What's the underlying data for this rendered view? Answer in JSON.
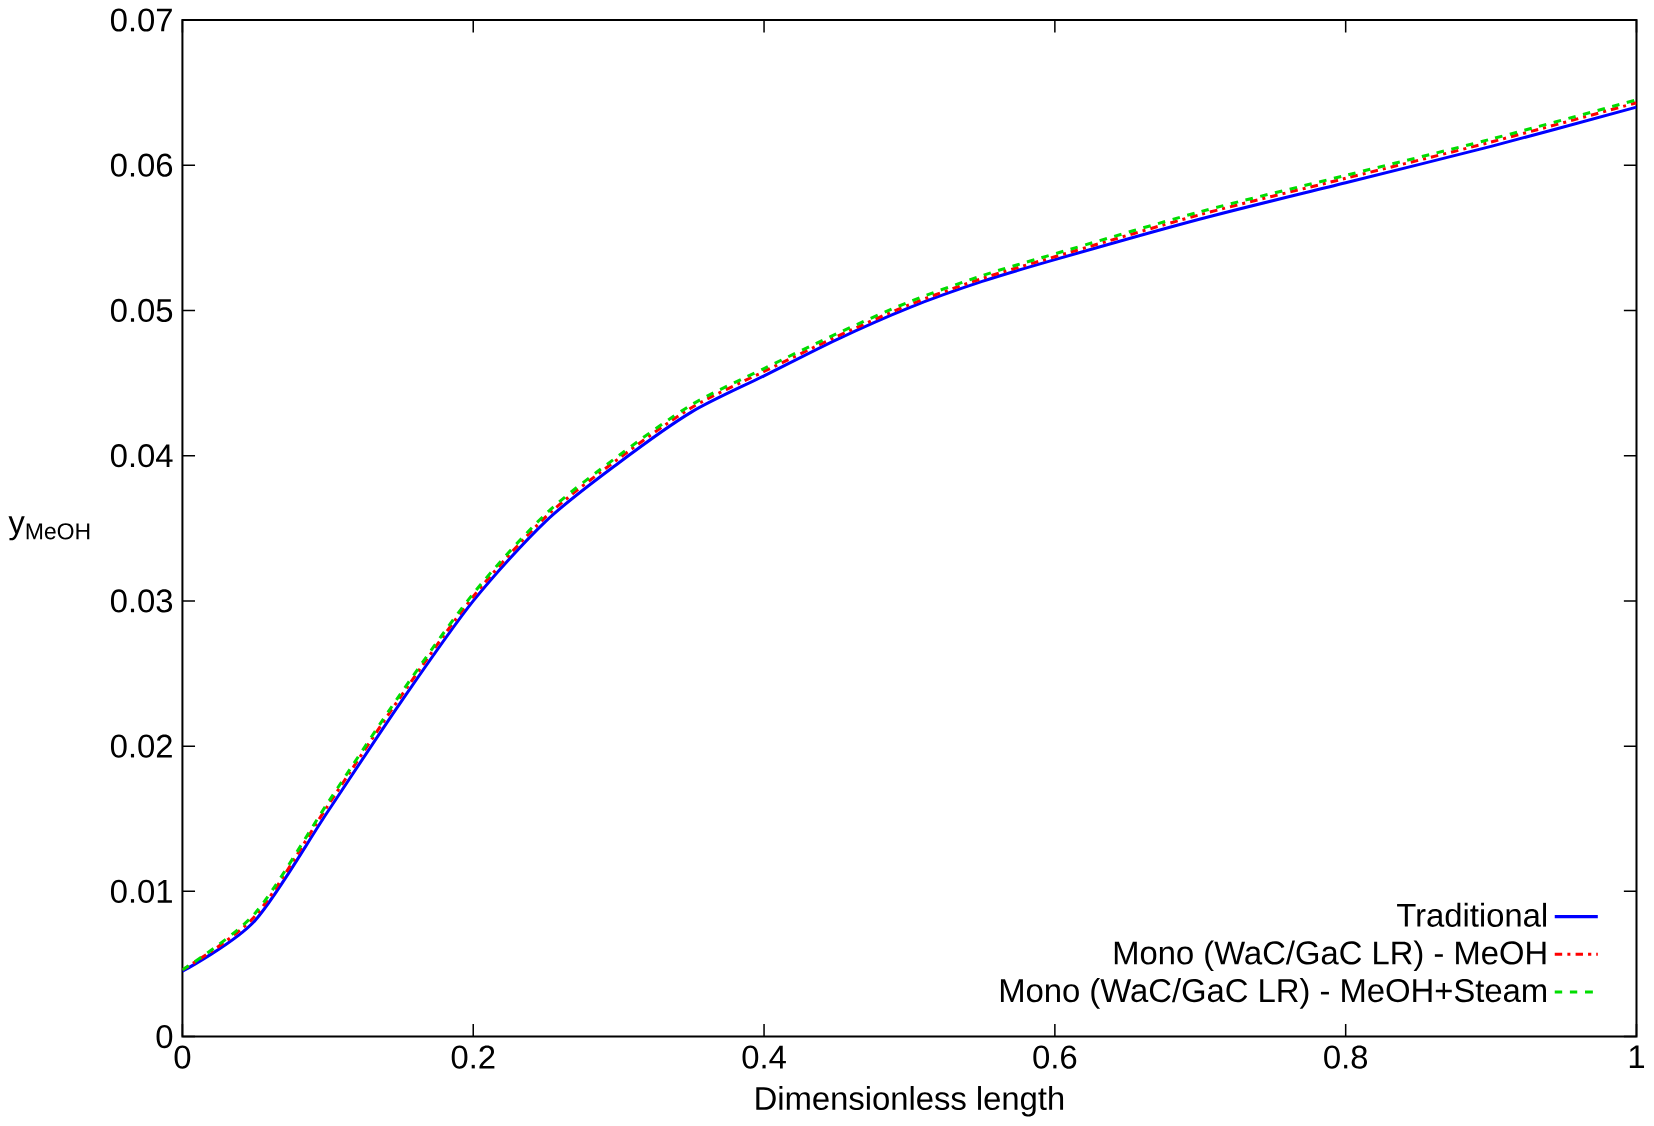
{
  "chart_data": {
    "type": "line",
    "xlabel": "Dimensionless length",
    "ylabel": "y$_{MeOH}$",
    "xlim": [
      0,
      1
    ],
    "ylim": [
      0,
      0.07
    ],
    "xticks": [
      0,
      0.2,
      0.4,
      0.6,
      0.8,
      1
    ],
    "yticks": [
      0,
      0.01,
      0.02,
      0.03,
      0.04,
      0.05,
      0.06,
      0.07
    ],
    "legend": "bottom right",
    "grid": false,
    "marker": "none",
    "x": [
      0,
      0.05,
      0.1,
      0.15,
      0.2,
      0.25,
      0.3,
      0.35,
      0.4,
      0.45,
      0.5,
      0.55,
      0.6,
      0.7,
      0.8,
      0.9,
      1
    ],
    "series": [
      {
        "name": "Traditional",
        "color": "#0000ff",
        "line_style": "solid",
        "values": [
          0.0045,
          0.008,
          0.0155,
          0.023,
          0.03,
          0.0355,
          0.0395,
          0.043,
          0.0455,
          0.048,
          0.0502,
          0.052,
          0.0535,
          0.0563,
          0.0588,
          0.0613,
          0.064
        ]
      },
      {
        "name": "Mono (WaC/GaC LR) - MeOH",
        "color": "#ff0000",
        "line_style": "dashdot",
        "values": [
          0.0046,
          0.0083,
          0.0159,
          0.0234,
          0.0303,
          0.0358,
          0.0398,
          0.0433,
          0.0458,
          0.0482,
          0.0504,
          0.0522,
          0.0537,
          0.0566,
          0.0591,
          0.0616,
          0.0643
        ]
      },
      {
        "name": "Mono (WaC/GaC LR) - MeOH+Steam",
        "color": "#00dd00",
        "line_style": "dashed",
        "values": [
          0.0046,
          0.0085,
          0.0161,
          0.0236,
          0.0305,
          0.036,
          0.04,
          0.0435,
          0.046,
          0.0484,
          0.0506,
          0.0524,
          0.0539,
          0.0568,
          0.0593,
          0.0618,
          0.0645
        ]
      }
    ]
  }
}
